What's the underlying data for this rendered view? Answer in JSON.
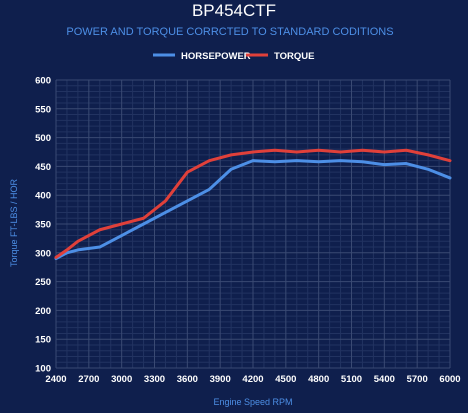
{
  "chart_data": {
    "type": "line",
    "title": "BP454CTF",
    "subtitle": "POWER AND TORQUE CORRCTED TO STANDARD CODITIONS",
    "xlabel": "Engine Speed RPM",
    "ylabel": "Torque FT-LBS / HOR",
    "xlim": [
      2400,
      6000
    ],
    "ylim": [
      100,
      600
    ],
    "x_ticks": [
      "2400",
      "2700",
      "3000",
      "3300",
      "3600",
      "3900",
      "4200",
      "4500",
      "4800",
      "5100",
      "5400",
      "5700",
      "6000"
    ],
    "y_ticks": [
      "100",
      "150",
      "200",
      "250",
      "300",
      "350",
      "400",
      "450",
      "500",
      "550",
      "600"
    ],
    "legend_position": "top",
    "grid": true,
    "x": [
      2400,
      2500,
      2600,
      2800,
      3000,
      3200,
      3400,
      3600,
      3800,
      4000,
      4200,
      4400,
      4600,
      4800,
      5000,
      5200,
      5400,
      5600,
      5800,
      6000
    ],
    "series": [
      {
        "name": "HORSEPOWER",
        "color": "#4d8fe6",
        "values": [
          290,
          300,
          305,
          310,
          330,
          350,
          370,
          390,
          410,
          445,
          460,
          458,
          460,
          458,
          460,
          458,
          453,
          455,
          445,
          430
        ]
      },
      {
        "name": "TORQUE",
        "color": "#e0403a",
        "values": [
          292,
          305,
          320,
          340,
          350,
          360,
          390,
          440,
          460,
          470,
          475,
          478,
          475,
          478,
          475,
          478,
          475,
          478,
          470,
          460
        ]
      }
    ]
  }
}
